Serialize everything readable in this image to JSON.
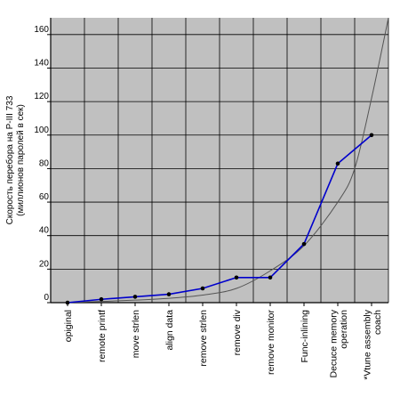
{
  "chart_data": {
    "type": "line",
    "title": "",
    "ylabel_lines": [
      "Скорость перебора  на P-III 733",
      "(миллионов паролей в сек)"
    ],
    "xlabel": "",
    "categories": [
      [
        "opiginal"
      ],
      [
        "remote printf"
      ],
      [
        "move strlen"
      ],
      [
        "align data"
      ],
      [
        "remove strlen"
      ],
      [
        "remove div"
      ],
      [
        "remove monitor"
      ],
      [
        "Func-inlining"
      ],
      [
        "Decuce memory",
        "operation"
      ],
      [
        "*Vtune assembly",
        "coach"
      ]
    ],
    "y_ticks": [
      0,
      20,
      40,
      60,
      80,
      100,
      120,
      140,
      160
    ],
    "ylim": [
      0,
      170
    ],
    "grid": true,
    "series": [
      {
        "name": "",
        "color": "#0000cc",
        "marker_color": "#000000",
        "values": [
          0,
          2,
          3.5,
          5,
          8.5,
          15,
          15,
          35,
          83,
          100
        ]
      }
    ],
    "trendline": {
      "type": "exponential",
      "color": "#555555",
      "points": [
        [
          0,
          0
        ],
        [
          1,
          0.7
        ],
        [
          2,
          1.5
        ],
        [
          3,
          2.6
        ],
        [
          4,
          4.5
        ],
        [
          5,
          8.5
        ],
        [
          6,
          19
        ],
        [
          7,
          34
        ],
        [
          8,
          60
        ],
        [
          8.5,
          80
        ],
        [
          9,
          122
        ],
        [
          9.5,
          170
        ]
      ]
    },
    "colors": {
      "plot_background": "#c0c0c0",
      "grid": "#000000",
      "axis": "#000000"
    }
  }
}
